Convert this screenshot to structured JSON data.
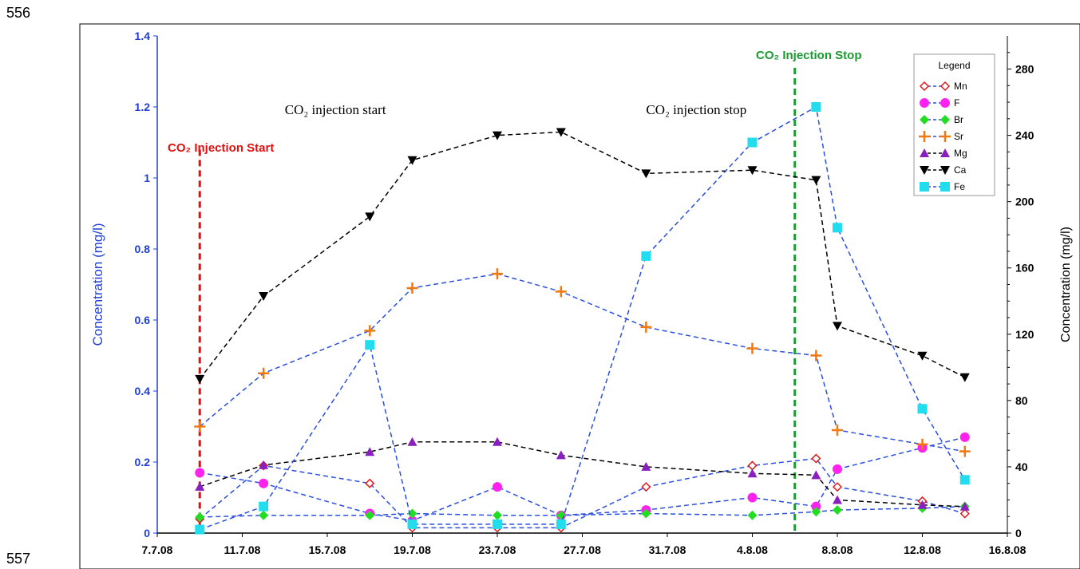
{
  "page": {
    "line_top": "556",
    "line_bottom": "557"
  },
  "chart_data": {
    "type": "line",
    "x_dates": [
      "9.7.08",
      "12.7.08",
      "17.7.08",
      "19.7.08",
      "23.7.08",
      "26.7.08",
      "30.7.08",
      "4.8.08",
      "7.8.08",
      "8.8.08",
      "12.8.08",
      "14.8.08"
    ],
    "x_ticks": [
      "7.7.08",
      "11.7.08",
      "15.7.08",
      "19.7.08",
      "23.7.08",
      "27.7.08",
      "31.7.08",
      "4.8.08",
      "8.8.08",
      "12.8.08",
      "16.8.08"
    ],
    "x_range": [
      "7.7.08",
      "16.8.08"
    ],
    "y_left": {
      "label": "Concentration (mg/l)",
      "min": 0,
      "max": 1.4,
      "ticks": [
        "0",
        "0.2",
        "0.4",
        "0.6",
        "0.8",
        "1",
        "1.2",
        "1.4"
      ]
    },
    "y_right": {
      "label": "Concentration (mg/l)",
      "min": 0,
      "max": 300,
      "ticks": [
        "0",
        "40",
        "80",
        "120",
        "160",
        "200",
        "240",
        "280"
      ]
    },
    "legend": {
      "title": "Legend",
      "placement": "top-right"
    },
    "series": [
      {
        "name": "Mn",
        "axis": "left",
        "marker": "diamond-open",
        "color": "#e01b1b",
        "line_color": "#2a4fe0",
        "values": [
          0.04,
          0.19,
          0.14,
          0.015,
          0.015,
          0.015,
          0.13,
          0.19,
          0.21,
          0.13,
          0.09,
          0.055
        ]
      },
      {
        "name": "F",
        "axis": "left",
        "marker": "circle",
        "color": "#ff22ee",
        "line_color": "#2a4fe0",
        "values": [
          0.17,
          0.14,
          0.055,
          0.035,
          0.13,
          0.05,
          0.065,
          0.1,
          0.075,
          0.18,
          0.24,
          0.27
        ]
      },
      {
        "name": "Br",
        "axis": "left",
        "marker": "diamond",
        "color": "#22dd22",
        "line_color": "#2a4fe0",
        "values": [
          0.045,
          0.05,
          0.05,
          0.055,
          0.05,
          0.05,
          0.055,
          0.05,
          0.06,
          0.065,
          0.07,
          0.075
        ]
      },
      {
        "name": "Sr",
        "axis": "left",
        "marker": "plus",
        "color": "#f07a10",
        "line_color": "#2a4fe0",
        "values": [
          0.3,
          0.45,
          0.57,
          0.69,
          0.73,
          0.68,
          0.58,
          0.52,
          0.5,
          0.29,
          0.25,
          0.23
        ]
      },
      {
        "name": "Mg",
        "axis": "right",
        "marker": "triangle-up",
        "color": "#8a1fc0",
        "line_color": "#000000",
        "values": [
          28,
          41,
          49,
          55,
          55,
          47,
          40,
          36,
          35,
          20,
          17,
          16
        ]
      },
      {
        "name": "Ca",
        "axis": "right",
        "marker": "triangle-down",
        "color": "#000000",
        "line_color": "#000000",
        "values": [
          93,
          143,
          191,
          225,
          240,
          242,
          217,
          219,
          213,
          125,
          107,
          94
        ]
      },
      {
        "name": "Fe",
        "axis": "left",
        "marker": "square",
        "color": "#22ddee",
        "line_color": "#2a4fe0",
        "values": [
          0.01,
          0.075,
          0.53,
          0.025,
          0.025,
          0.025,
          0.78,
          1.1,
          1.2,
          0.86,
          0.35,
          0.15
        ]
      }
    ],
    "annotations": [
      {
        "id": "start-text",
        "text": "CO₂ injection start",
        "at_date": "13.7.08",
        "at_y_left": 1.18
      },
      {
        "id": "stop-text",
        "text": "CO₂ injection stop",
        "at_date": "30.7.08",
        "at_y_left": 1.18
      },
      {
        "id": "start-label",
        "text": "CO₂ Injection Start",
        "color": "#e01010"
      },
      {
        "id": "stop-label",
        "text": "CO₂ Injection Stop",
        "color": "#1a9a30"
      }
    ],
    "vlines": [
      {
        "name": "injection-start-line",
        "date": "9.7.08",
        "color": "#e01010",
        "y_top_left": 1.08
      },
      {
        "name": "injection-stop-line",
        "date": "6.8.08",
        "color": "#1a9a30",
        "y_top_left": 1.31
      }
    ]
  }
}
